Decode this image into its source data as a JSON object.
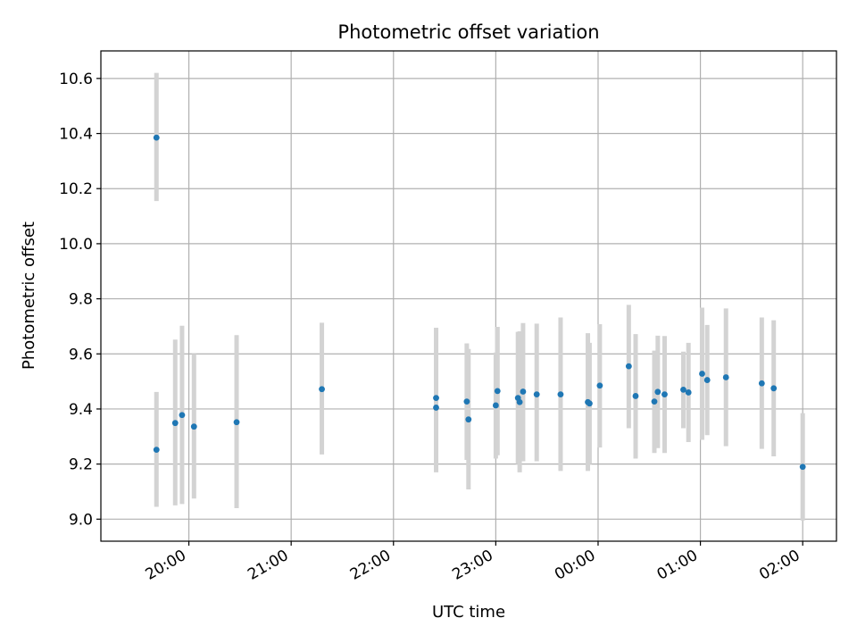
{
  "chart_data": {
    "type": "scatter",
    "title": "Photometric offset variation",
    "xlabel": "UTC time",
    "ylabel": "Photometric offset",
    "x_tick_labels": [
      "20:00",
      "21:00",
      "22:00",
      "23:00",
      "00:00",
      "01:00",
      "02:00"
    ],
    "y_tick_labels": [
      "9.0",
      "9.2",
      "9.4",
      "9.6",
      "9.8",
      "10.0",
      "10.2",
      "10.4",
      "10.6"
    ],
    "y_ticks": [
      9.0,
      9.2,
      9.4,
      9.6,
      9.8,
      10.0,
      10.2,
      10.4,
      10.6
    ],
    "x_tick_hours": [
      20,
      21,
      22,
      23,
      24,
      25,
      26
    ],
    "xlim_hours": [
      19.14,
      26.33
    ],
    "ylim": [
      8.92,
      10.7
    ],
    "grid": true,
    "point_color": "#1f77b4",
    "errorbar_color": "#d3d3d3",
    "series": [
      {
        "points": [
          {
            "x": "19:41",
            "y": 10.385,
            "ylow": 10.155,
            "yhigh": 10.62
          },
          {
            "x": "19:41",
            "y": 9.252,
            "ylow": 9.045,
            "yhigh": 9.462
          },
          {
            "x": "19:52",
            "y": 9.349,
            "ylow": 9.05,
            "yhigh": 9.652
          },
          {
            "x": "19:56",
            "y": 9.378,
            "ylow": 9.055,
            "yhigh": 9.702
          },
          {
            "x": "20:03",
            "y": 9.336,
            "ylow": 9.075,
            "yhigh": 9.6
          },
          {
            "x": "20:28",
            "y": 9.352,
            "ylow": 9.04,
            "yhigh": 9.668
          },
          {
            "x": "21:18",
            "y": 9.472,
            "ylow": 9.235,
            "yhigh": 9.713
          },
          {
            "x": "22:25",
            "y": 9.44,
            "ylow": 9.185,
            "yhigh": 9.695
          },
          {
            "x": "22:25",
            "y": 9.405,
            "ylow": 9.17,
            "yhigh": 9.64
          },
          {
            "x": "22:43",
            "y": 9.427,
            "ylow": 9.215,
            "yhigh": 9.638
          },
          {
            "x": "22:44",
            "y": 9.362,
            "ylow": 9.108,
            "yhigh": 9.618
          },
          {
            "x": "23:00",
            "y": 9.413,
            "ylow": 9.22,
            "yhigh": 9.605
          },
          {
            "x": "23:01",
            "y": 9.465,
            "ylow": 9.232,
            "yhigh": 9.698
          },
          {
            "x": "23:13",
            "y": 9.44,
            "ylow": 9.2,
            "yhigh": 9.68
          },
          {
            "x": "23:14",
            "y": 9.425,
            "ylow": 9.17,
            "yhigh": 9.682
          },
          {
            "x": "23:16",
            "y": 9.463,
            "ylow": 9.21,
            "yhigh": 9.712
          },
          {
            "x": "23:24",
            "y": 9.453,
            "ylow": 9.21,
            "yhigh": 9.71
          },
          {
            "x": "23:38",
            "y": 9.453,
            "ylow": 9.175,
            "yhigh": 9.732
          },
          {
            "x": "23:54",
            "y": 9.425,
            "ylow": 9.175,
            "yhigh": 9.675
          },
          {
            "x": "23:55",
            "y": 9.42,
            "ylow": 9.2,
            "yhigh": 9.64
          },
          {
            "x": "00:01",
            "y": 9.485,
            "ylow": 9.26,
            "yhigh": 9.708
          },
          {
            "x": "00:18",
            "y": 9.555,
            "ylow": 9.33,
            "yhigh": 9.778
          },
          {
            "x": "00:22",
            "y": 9.447,
            "ylow": 9.22,
            "yhigh": 9.672
          },
          {
            "x": "00:33",
            "y": 9.427,
            "ylow": 9.24,
            "yhigh": 9.612
          },
          {
            "x": "00:35",
            "y": 9.462,
            "ylow": 9.258,
            "yhigh": 9.666
          },
          {
            "x": "00:39",
            "y": 9.453,
            "ylow": 9.24,
            "yhigh": 9.665
          },
          {
            "x": "00:50",
            "y": 9.47,
            "ylow": 9.33,
            "yhigh": 9.608
          },
          {
            "x": "00:53",
            "y": 9.46,
            "ylow": 9.28,
            "yhigh": 9.64
          },
          {
            "x": "01:01",
            "y": 9.528,
            "ylow": 9.288,
            "yhigh": 9.768
          },
          {
            "x": "01:04",
            "y": 9.505,
            "ylow": 9.305,
            "yhigh": 9.705
          },
          {
            "x": "01:15",
            "y": 9.515,
            "ylow": 9.265,
            "yhigh": 9.765
          },
          {
            "x": "01:36",
            "y": 9.493,
            "ylow": 9.255,
            "yhigh": 9.732
          },
          {
            "x": "01:43",
            "y": 9.475,
            "ylow": 9.228,
            "yhigh": 9.722
          },
          {
            "x": "02:00",
            "y": 9.19,
            "ylow": 8.995,
            "yhigh": 9.385
          }
        ]
      }
    ]
  }
}
